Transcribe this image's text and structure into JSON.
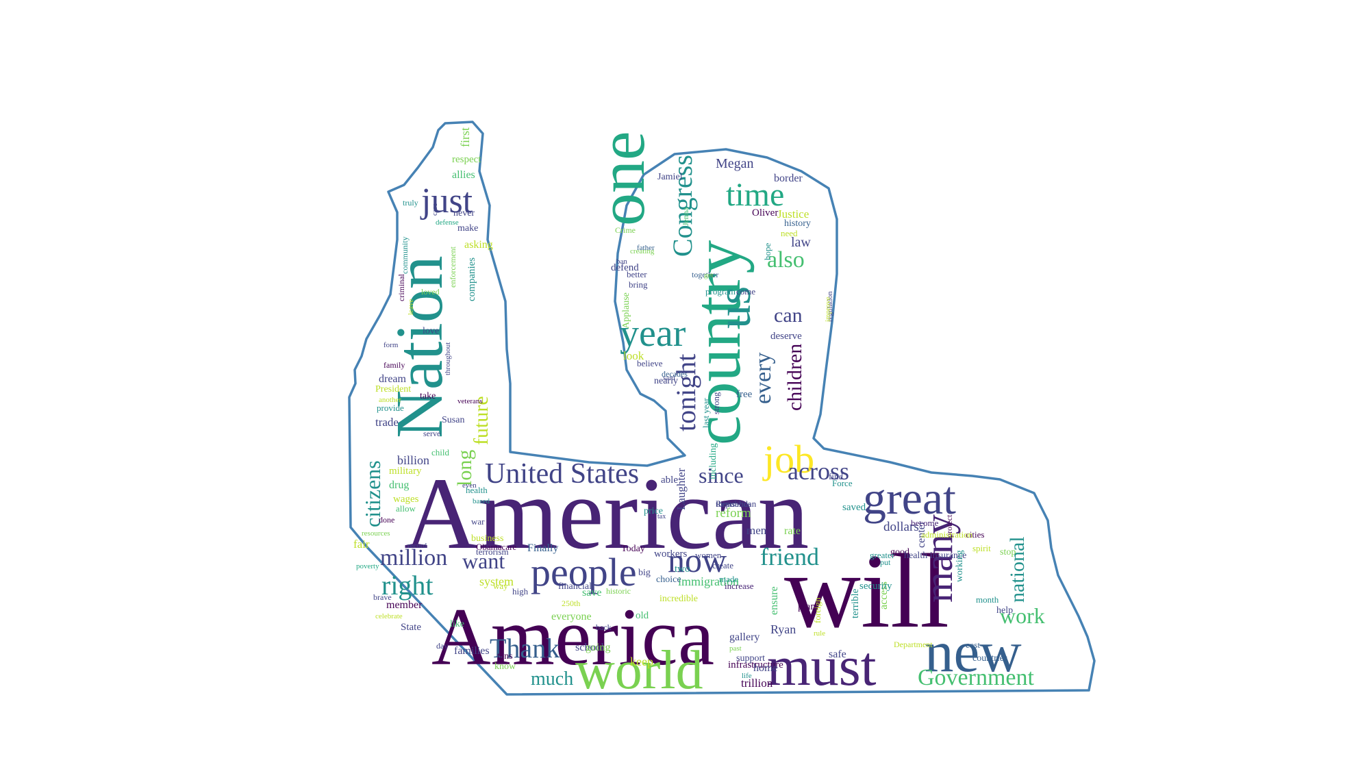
{
  "palette": [
    "#440154",
    "#482475",
    "#414487",
    "#355f8d",
    "#2a788e",
    "#21918c",
    "#22a884",
    "#44bf70",
    "#7ad151",
    "#bddf26",
    "#fde725"
  ],
  "outline_color": "#4682b4",
  "words": [
    "American",
    "will",
    "America",
    "world",
    "must",
    "new",
    "Nation",
    "country",
    "one",
    "great",
    "people",
    "us",
    "year",
    "job",
    "time",
    "just",
    "now",
    "United States",
    "many",
    "friend",
    "tonight",
    "Congress",
    "right",
    "across",
    "children",
    "million",
    "every",
    "also",
    "Government",
    "work",
    "citizens",
    "Thank",
    "want",
    "since",
    "much",
    "national",
    "long",
    "future",
    "can",
    "immigration",
    "Ryan",
    "law",
    "dollars",
    "trillion",
    "system",
    "border",
    "Megan",
    "Jamiel",
    "Oliver",
    "Justice",
    "history",
    "first",
    "respect",
    "allies",
    "never",
    "make",
    "asking",
    "truly",
    "care",
    "defense",
    "community",
    "companies",
    "criminal",
    "enforcement",
    "loved",
    "leave",
    "form",
    "love",
    "family",
    "dream",
    "President",
    "another",
    "provide",
    "take",
    "veterans",
    "trade",
    "serve",
    "Susan",
    "child",
    "billion",
    "military",
    "drug",
    "wages",
    "allow",
    "done",
    "resources",
    "fair",
    "record",
    "poverty",
    "brave",
    "celebrate",
    "member",
    "State",
    "like",
    "day",
    "tens",
    "know",
    "families",
    "school",
    "even",
    "health",
    "based",
    "war",
    "business",
    "Obamacare",
    "terrorism",
    "Finally",
    "Today",
    "workers",
    "two",
    "financial",
    "way",
    "high",
    "everyone",
    "250th",
    "save",
    "going",
    "back",
    "historic",
    "choice",
    "big",
    "tax",
    "Laughter",
    "price",
    "create",
    "reform",
    "men",
    "women",
    "made",
    "increase",
    "support",
    "past",
    "gallery",
    "infrastructure",
    "home",
    "life",
    "safe",
    "keep",
    "old",
    "incredible",
    "ensure",
    "rule",
    "plan",
    "foreign",
    "Department",
    "access",
    "terrible",
    "good",
    "health insurance",
    "put",
    "greater",
    "security",
    "cities",
    "spirit",
    "center",
    "working",
    "month",
    "cost",
    "countries",
    "stop",
    "help",
    "protect",
    "rate",
    "saved",
    "administration",
    "become",
    "find",
    "Force",
    "able",
    "thousands",
    "Republican",
    "including",
    "last year",
    "strong",
    "free",
    "hope",
    "deserve",
    "come",
    "nearly",
    "said",
    "decades",
    "believe",
    "look",
    "Applause",
    "better",
    "bring",
    "together",
    "get",
    "program",
    "need",
    "defend",
    "creating",
    "ban",
    "father",
    "Crime",
    "Jenna",
    "regulation",
    "improve",
    "throughout"
  ]
}
